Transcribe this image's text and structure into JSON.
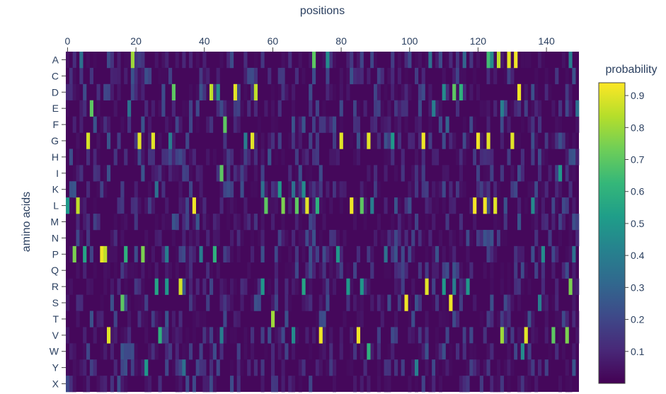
{
  "chart_data": {
    "type": "heatmap",
    "xlabel": "positions",
    "ylabel": "amino acids",
    "x_range": [
      -0.5,
      149.5
    ],
    "x_ticks": [
      0,
      20,
      40,
      60,
      80,
      100,
      120,
      140
    ],
    "x_axis_side": "top",
    "y_categories": [
      "A",
      "C",
      "D",
      "E",
      "F",
      "G",
      "H",
      "I",
      "K",
      "L",
      "M",
      "N",
      "P",
      "Q",
      "R",
      "S",
      "T",
      "V",
      "W",
      "Y",
      "X"
    ],
    "colorbar": {
      "title": "probability",
      "range": [
        0,
        0.94
      ],
      "ticks": [
        0.1,
        0.2,
        0.3,
        0.4,
        0.5,
        0.6,
        0.7,
        0.8,
        0.9
      ],
      "colorscale": "Viridis",
      "colors": [
        "#440154",
        "#482878",
        "#3e4989",
        "#31688e",
        "#26828e",
        "#1f9e89",
        "#35b779",
        "#6ece58",
        "#b5de2b",
        "#fde725"
      ]
    },
    "n_positions": 150,
    "background_value": 0.02,
    "highlights": [
      {
        "aa": "A",
        "positions": [
          4,
          19,
          72,
          76,
          106,
          116,
          123,
          124,
          126,
          129,
          131,
          147
        ],
        "values": [
          0.35,
          0.8,
          0.7,
          0.45,
          0.35,
          0.3,
          0.65,
          0.45,
          0.85,
          0.9,
          0.92,
          0.4
        ]
      },
      {
        "aa": "D",
        "positions": [
          31,
          42,
          44,
          49,
          55,
          110,
          113,
          115,
          132
        ],
        "values": [
          0.7,
          0.85,
          0.45,
          0.9,
          0.85,
          0.45,
          0.7,
          0.6,
          0.92
        ]
      },
      {
        "aa": "E",
        "positions": [
          7,
          18,
          107,
          127,
          149
        ],
        "values": [
          0.7,
          0.35,
          0.4,
          0.4,
          0.35
        ]
      },
      {
        "aa": "F",
        "positions": [
          46,
          111
        ],
        "values": [
          0.7,
          0.3
        ]
      },
      {
        "aa": "G",
        "positions": [
          6,
          21,
          25,
          30,
          52,
          54,
          80,
          88,
          95,
          104,
          120,
          123,
          130
        ],
        "values": [
          0.88,
          0.9,
          0.9,
          0.4,
          0.4,
          0.9,
          0.9,
          0.9,
          0.5,
          0.92,
          0.92,
          0.9,
          0.9
        ]
      },
      {
        "aa": "I",
        "positions": [
          45,
          144
        ],
        "values": [
          0.7,
          0.5
        ]
      },
      {
        "aa": "K",
        "positions": [
          26,
          57,
          62,
          66,
          69
        ],
        "values": [
          0.35,
          0.35,
          0.5,
          0.35,
          0.45
        ]
      },
      {
        "aa": "L",
        "positions": [
          0,
          3,
          37,
          58,
          63,
          67,
          70,
          73,
          83,
          86,
          89,
          119,
          122,
          125,
          136
        ],
        "values": [
          0.5,
          0.85,
          0.92,
          0.7,
          0.75,
          0.7,
          0.9,
          0.6,
          0.92,
          0.7,
          0.4,
          0.93,
          0.92,
          0.9,
          0.45
        ]
      },
      {
        "aa": "P",
        "positions": [
          2,
          5,
          10,
          11,
          17,
          22,
          29,
          39,
          43,
          79,
          93,
          139,
          148
        ],
        "values": [
          0.75,
          0.55,
          0.92,
          0.85,
          0.6,
          0.75,
          0.4,
          0.4,
          0.6,
          0.5,
          0.35,
          0.45,
          0.35
        ]
      },
      {
        "aa": "R",
        "positions": [
          26,
          29,
          33,
          57,
          69,
          82,
          86,
          105,
          110,
          113,
          117,
          147
        ],
        "values": [
          0.55,
          0.5,
          0.88,
          0.5,
          0.55,
          0.5,
          0.5,
          0.9,
          0.5,
          0.4,
          0.5,
          0.75
        ]
      },
      {
        "aa": "S",
        "positions": [
          16,
          99,
          112,
          138
        ],
        "values": [
          0.7,
          0.92,
          0.92,
          0.4
        ]
      },
      {
        "aa": "T",
        "positions": [
          60
        ],
        "values": [
          0.8
        ]
      },
      {
        "aa": "V",
        "positions": [
          12,
          27,
          45,
          66,
          74,
          85,
          127,
          134,
          142,
          146
        ],
        "values": [
          0.9,
          0.6,
          0.4,
          0.45,
          0.92,
          0.92,
          0.8,
          0.9,
          0.7,
          0.75
        ]
      },
      {
        "aa": "W",
        "positions": [
          88,
          133
        ],
        "values": [
          0.6,
          0.45
        ]
      },
      {
        "aa": "Y",
        "positions": [
          23,
          34,
          102
        ],
        "values": [
          0.5,
          0.35,
          0.4
        ]
      }
    ]
  }
}
